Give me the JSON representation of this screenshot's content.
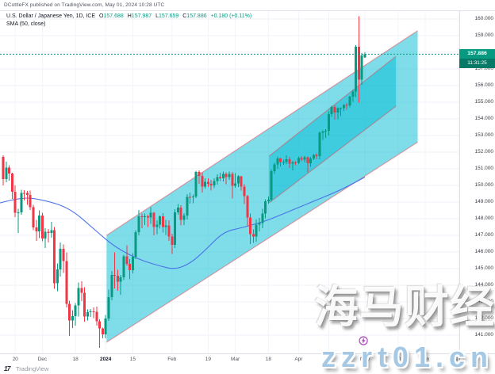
{
  "attribution": "DCottleFX published on TradingView.com, May 01, 2024 10:28 UTC",
  "symbol": {
    "name": "U.S. Dollar / Japanese Yen, 1D, ICE",
    "o_label": "O",
    "o": "157.688",
    "h_label": "H",
    "h": "157.987",
    "l_label": "L",
    "l": "157.659",
    "c_label": "C",
    "c": "157.886",
    "change": "+0.180 (+0.11%)"
  },
  "indicator": "SMA (50, close)",
  "badge": {
    "price": "157.886",
    "countdown": "11:31:25"
  },
  "watermarks": {
    "cn": "海马财经",
    "url": "zzrt01.cn"
  },
  "logo": {
    "monogram": "17",
    "text": "TradingView"
  },
  "colors": {
    "up": "#089981",
    "down": "#f23645",
    "sma": "#4a72e8",
    "channel_fill": "rgba(0,188,212,0.5)",
    "channel_border": "rgba(242,54,69,0.45)",
    "grid": "#eef1f8",
    "vgrid": "#f2f4f9",
    "price_line": "#089981",
    "event": "#ab47bc"
  },
  "chart_data": {
    "type": "candlestick",
    "title": "U.S. Dollar / Japanese Yen",
    "timeframe": "1D",
    "exchange": "ICE",
    "last_price": 157.886,
    "ylim": [
      141,
      160
    ],
    "price_ticks": [
      "160.000",
      "159.000",
      "158.000",
      "157.000",
      "156.000",
      "155.000",
      "154.000",
      "153.000",
      "152.000",
      "151.000",
      "150.000",
      "149.000",
      "148.000",
      "147.000",
      "146.000",
      "145.000",
      "144.000",
      "143.000",
      "142.000",
      "141.000"
    ],
    "time_ticks": [
      {
        "label": "20",
        "i": 4
      },
      {
        "label": "Dec",
        "i": 13
      },
      {
        "label": "18",
        "i": 24
      },
      {
        "label": "2024",
        "i": 34,
        "strong": true
      },
      {
        "label": "15",
        "i": 43
      },
      {
        "label": "Feb",
        "i": 56
      },
      {
        "label": "19",
        "i": 68
      },
      {
        "label": "Mar",
        "i": 77
      },
      {
        "label": "18",
        "i": 88
      },
      {
        "label": "Apr",
        "i": 98
      },
      {
        "label": "15",
        "i": 108
      },
      {
        "label": "May",
        "i": 120
      },
      {
        "label": "20",
        "i": 131
      },
      {
        "label": "Jun",
        "i": 140
      },
      {
        "label": "17",
        "i": 151
      }
    ],
    "candles": [
      [
        151.71,
        151.82,
        150.01,
        150.37
      ],
      [
        150.37,
        151.43,
        150.19,
        151.07
      ],
      [
        151.07,
        151.21,
        150.29,
        150.72
      ],
      [
        150.72,
        150.77,
        149.2,
        149.63
      ],
      [
        149.63,
        149.99,
        148.1,
        148.35
      ],
      [
        148.35,
        148.59,
        147.15,
        148.38
      ],
      [
        148.38,
        149.75,
        148.25,
        149.55
      ],
      [
        149.55,
        149.71,
        149.1,
        149.54
      ],
      [
        149.54,
        149.67,
        148.84,
        149.44
      ],
      [
        149.44,
        149.68,
        148.52,
        148.68
      ],
      [
        148.68,
        148.84,
        147.32,
        147.48
      ],
      [
        147.48,
        147.92,
        146.67,
        147.24
      ],
      [
        147.24,
        148.51,
        146.83,
        148.2
      ],
      [
        148.2,
        148.35,
        146.65,
        146.82
      ],
      [
        146.82,
        147.44,
        146.23,
        147.21
      ],
      [
        147.21,
        147.39,
        146.58,
        147.14
      ],
      [
        147.14,
        147.82,
        146.85,
        147.3
      ],
      [
        147.3,
        147.5,
        143.79,
        144.13
      ],
      [
        144.13,
        145.32,
        143.65,
        144.95
      ],
      [
        144.95,
        146.58,
        144.52,
        146.19
      ],
      [
        146.19,
        146.45,
        144.73,
        145.45
      ],
      [
        145.45,
        145.98,
        142.66,
        142.89
      ],
      [
        142.89,
        143.06,
        140.95,
        141.89
      ],
      [
        141.89,
        142.49,
        141.42,
        142.15
      ],
      [
        142.15,
        142.92,
        141.56,
        142.78
      ],
      [
        142.78,
        144.16,
        142.12,
        143.84
      ],
      [
        143.84,
        144.23,
        143.05,
        143.55
      ],
      [
        143.55,
        143.89,
        141.81,
        142.12
      ],
      [
        142.12,
        142.55,
        141.88,
        142.37
      ],
      [
        142.37,
        142.56,
        142.1,
        142.42
      ],
      [
        142.42,
        142.66,
        142.02,
        142.4
      ],
      [
        142.4,
        142.72,
        141.56,
        141.83
      ],
      [
        141.83,
        141.95,
        140.25,
        141.4
      ],
      [
        141.4,
        141.46,
        140.8,
        141.04
      ],
      [
        141.04,
        142.21,
        140.82,
        141.99
      ],
      [
        141.99,
        143.73,
        141.85,
        143.28
      ],
      [
        143.28,
        144.85,
        143.1,
        144.63
      ],
      [
        144.63,
        145.98,
        143.8,
        144.57
      ],
      [
        144.57,
        144.92,
        143.66,
        144.21
      ],
      [
        144.21,
        144.62,
        143.42,
        144.47
      ],
      [
        144.47,
        145.83,
        144.31,
        145.75
      ],
      [
        145.75,
        146.41,
        145.16,
        145.28
      ],
      [
        145.28,
        145.56,
        144.35,
        144.9
      ],
      [
        144.9,
        145.93,
        144.72,
        145.72
      ],
      [
        145.72,
        147.31,
        145.58,
        147.18
      ],
      [
        147.18,
        148.52,
        146.99,
        148.15
      ],
      [
        148.15,
        148.31,
        147.42,
        148.14
      ],
      [
        148.14,
        148.3,
        147.62,
        148.14
      ],
      [
        148.14,
        148.25,
        147.51,
        148.08
      ],
      [
        148.08,
        148.7,
        147.7,
        148.36
      ],
      [
        148.36,
        148.4,
        146.99,
        147.51
      ],
      [
        147.51,
        147.91,
        147.08,
        147.65
      ],
      [
        147.65,
        148.2,
        147.4,
        148.15
      ],
      [
        148.15,
        148.33,
        147.17,
        147.49
      ],
      [
        147.49,
        147.92,
        147.03,
        147.6
      ],
      [
        147.6,
        147.9,
        146.66,
        146.92
      ],
      [
        146.92,
        147.1,
        145.89,
        146.42
      ],
      [
        146.42,
        148.58,
        146.25,
        148.38
      ],
      [
        148.38,
        148.89,
        148.25,
        148.67
      ],
      [
        148.67,
        148.8,
        147.6,
        147.93
      ],
      [
        147.93,
        148.34,
        147.61,
        148.18
      ],
      [
        148.18,
        149.48,
        147.95,
        149.32
      ],
      [
        149.32,
        149.57,
        148.91,
        149.29
      ],
      [
        149.29,
        149.45,
        148.93,
        149.34
      ],
      [
        149.34,
        150.88,
        149.23,
        150.8
      ],
      [
        150.8,
        150.91,
        150.1,
        150.57
      ],
      [
        150.57,
        150.79,
        149.56,
        149.93
      ],
      [
        149.93,
        150.43,
        149.82,
        150.21
      ],
      [
        150.21,
        150.43,
        149.9,
        150.09
      ],
      [
        150.09,
        150.33,
        149.68,
        150.0
      ],
      [
        150.0,
        150.43,
        149.83,
        150.26
      ],
      [
        150.26,
        150.67,
        150.04,
        150.51
      ],
      [
        150.51,
        150.77,
        150.26,
        150.44
      ],
      [
        150.44,
        150.84,
        150.23,
        150.7
      ],
      [
        150.7,
        150.78,
        150.08,
        150.5
      ],
      [
        150.5,
        150.84,
        150.33,
        150.69
      ],
      [
        150.69,
        150.81,
        149.21,
        149.98
      ],
      [
        149.98,
        150.73,
        149.85,
        150.12
      ],
      [
        150.12,
        150.63,
        149.91,
        150.55
      ],
      [
        150.55,
        150.57,
        149.7,
        149.94
      ],
      [
        149.94,
        150.08,
        148.88,
        149.35
      ],
      [
        149.35,
        149.43,
        147.54,
        148.06
      ],
      [
        148.06,
        148.3,
        146.48,
        147.06
      ],
      [
        147.06,
        147.35,
        146.55,
        146.94
      ],
      [
        146.94,
        147.95,
        146.62,
        147.64
      ],
      [
        147.64,
        148.04,
        147.24,
        147.75
      ],
      [
        147.75,
        148.6,
        147.42,
        148.32
      ],
      [
        148.32,
        149.16,
        148.02,
        149.05
      ],
      [
        149.05,
        149.33,
        148.91,
        149.15
      ],
      [
        149.15,
        150.96,
        149.03,
        150.86
      ],
      [
        150.86,
        151.36,
        150.68,
        151.26
      ],
      [
        151.26,
        151.74,
        150.99,
        151.61
      ],
      [
        151.61,
        151.66,
        151.15,
        151.41
      ],
      [
        151.41,
        151.55,
        151.25,
        151.41
      ],
      [
        151.41,
        151.81,
        151.29,
        151.56
      ],
      [
        151.56,
        151.72,
        151.05,
        151.31
      ],
      [
        151.31,
        151.47,
        150.9,
        151.38
      ],
      [
        151.38,
        151.46,
        151.22,
        151.35
      ],
      [
        151.35,
        151.73,
        151.28,
        151.65
      ],
      [
        151.65,
        151.77,
        151.45,
        151.55
      ],
      [
        151.55,
        151.78,
        151.41,
        151.7
      ],
      [
        151.7,
        151.75,
        150.78,
        151.33
      ],
      [
        151.33,
        151.72,
        151.11,
        151.62
      ],
      [
        151.62,
        151.89,
        151.52,
        151.84
      ],
      [
        151.84,
        151.93,
        151.56,
        151.76
      ],
      [
        151.76,
        153.24,
        151.58,
        153.17
      ],
      [
        153.17,
        153.32,
        152.75,
        153.25
      ],
      [
        153.25,
        153.39,
        152.86,
        153.28
      ],
      [
        153.28,
        154.45,
        153.01,
        154.28
      ],
      [
        154.28,
        154.79,
        154.12,
        154.72
      ],
      [
        154.72,
        154.8,
        153.96,
        154.39
      ],
      [
        154.39,
        154.7,
        153.98,
        154.64
      ],
      [
        154.64,
        154.7,
        154.17,
        154.65
      ],
      [
        154.65,
        154.88,
        154.48,
        154.84
      ],
      [
        154.84,
        154.95,
        154.55,
        154.82
      ],
      [
        154.82,
        155.37,
        154.68,
        155.33
      ],
      [
        155.33,
        155.75,
        155.03,
        155.65
      ],
      [
        155.65,
        158.44,
        155.32,
        158.33
      ],
      [
        158.33,
        160.17,
        154.97,
        156.35
      ],
      [
        156.35,
        157.95,
        156.05,
        157.8
      ],
      [
        157.69,
        157.99,
        157.66,
        157.89
      ]
    ],
    "sma": [
      [
        -1,
        148.95
      ],
      [
        6,
        149.3
      ],
      [
        13,
        149.15
      ],
      [
        22,
        148.65
      ],
      [
        30,
        147.4
      ],
      [
        37,
        146.3
      ],
      [
        45,
        145.55
      ],
      [
        52,
        145.15
      ],
      [
        57,
        144.95
      ],
      [
        62,
        145.3
      ],
      [
        67,
        146.1
      ],
      [
        73,
        147.2
      ],
      [
        79,
        147.45
      ],
      [
        87,
        147.85
      ],
      [
        95,
        148.45
      ],
      [
        103,
        149.05
      ],
      [
        111,
        149.65
      ],
      [
        117,
        150.2
      ],
      [
        120,
        150.5
      ]
    ],
    "channels": [
      {
        "name": "outer-ascending-channel",
        "i1": 34.3,
        "i2": 137.5,
        "top1": 147.0,
        "top2": 159.3,
        "bot1": 140.57,
        "bot2": 152.6
      },
      {
        "name": "inner-ascending-channel",
        "i1": 88.2,
        "i2": 130.3,
        "top1": 151.76,
        "top2": 157.76,
        "bot1": 148.95,
        "bot2": 154.76
      }
    ],
    "event_marker": {
      "i": 119.5
    }
  }
}
